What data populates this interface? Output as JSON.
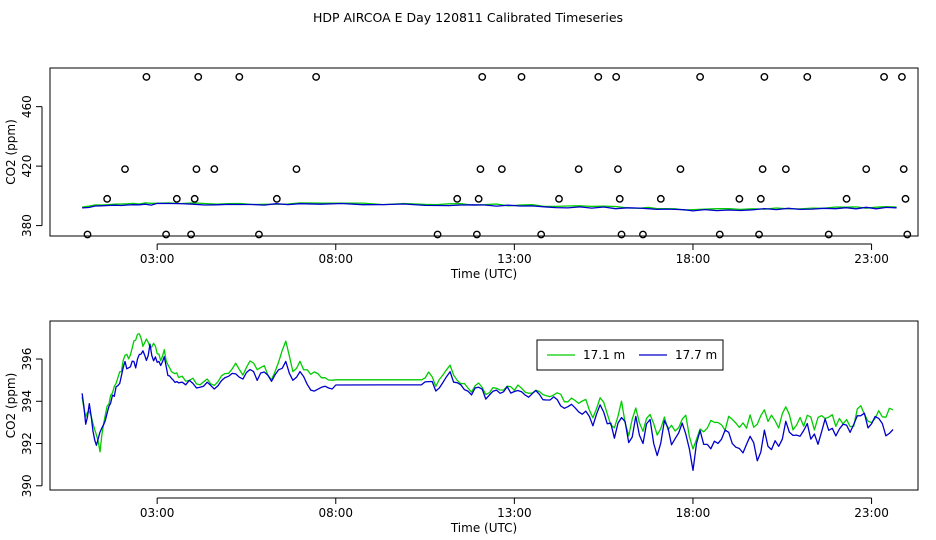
{
  "page_title": "HDP AIRCOA E  Day 120811  Calibrated Timeseries",
  "colors": {
    "green": "#00cc00",
    "blue": "#0000cc",
    "axis": "#000000"
  },
  "chart_data": [
    {
      "type": "scatter+line",
      "id": "top",
      "xlabel": "Time (UTC)",
      "ylabel": "CO2 (ppm)",
      "xlim": [
        0,
        24.3
      ],
      "ylim": [
        373,
        486
      ],
      "x_ticks": [
        3,
        8,
        13,
        18,
        23
      ],
      "x_tick_labels": [
        "03:00",
        "08:00",
        "13:00",
        "18:00",
        "23:00"
      ],
      "y_ticks": [
        380,
        420,
        460
      ],
      "y_tick_labels": [
        "380",
        "420",
        "460"
      ],
      "points": [
        [
          1.05,
          374
        ],
        [
          1.6,
          398
        ],
        [
          2.1,
          418
        ],
        [
          2.7,
          480
        ],
        [
          3.25,
          374
        ],
        [
          3.55,
          398
        ],
        [
          3.95,
          374
        ],
        [
          4.05,
          398
        ],
        [
          4.1,
          418
        ],
        [
          4.15,
          480
        ],
        [
          4.6,
          418
        ],
        [
          5.3,
          480
        ],
        [
          5.85,
          374
        ],
        [
          6.35,
          398
        ],
        [
          6.9,
          418
        ],
        [
          7.45,
          480
        ],
        [
          10.85,
          374
        ],
        [
          11.4,
          398
        ],
        [
          11.95,
          374
        ],
        [
          12.0,
          398
        ],
        [
          12.05,
          418
        ],
        [
          12.1,
          480
        ],
        [
          12.65,
          418
        ],
        [
          13.2,
          480
        ],
        [
          13.75,
          374
        ],
        [
          14.25,
          398
        ],
        [
          14.8,
          418
        ],
        [
          15.35,
          480
        ],
        [
          15.85,
          480
        ],
        [
          15.9,
          418
        ],
        [
          15.95,
          398
        ],
        [
          16.0,
          374
        ],
        [
          16.6,
          374
        ],
        [
          17.1,
          398
        ],
        [
          17.65,
          418
        ],
        [
          18.2,
          480
        ],
        [
          18.75,
          374
        ],
        [
          19.3,
          398
        ],
        [
          19.85,
          374
        ],
        [
          19.9,
          398
        ],
        [
          19.95,
          418
        ],
        [
          20.0,
          480
        ],
        [
          20.6,
          418
        ],
        [
          21.2,
          480
        ],
        [
          21.8,
          374
        ],
        [
          22.3,
          398
        ],
        [
          22.85,
          418
        ],
        [
          23.35,
          480
        ],
        [
          23.85,
          480
        ],
        [
          23.9,
          418
        ],
        [
          23.95,
          398
        ],
        [
          24.0,
          374
        ]
      ],
      "series": [
        {
          "name": "17.1 m",
          "color": "green",
          "values": [
            [
              0.9,
              393
            ],
            [
              2.0,
              394
            ],
            [
              3.0,
              395.5
            ],
            [
              5.0,
              394.5
            ],
            [
              7.0,
              395
            ],
            [
              10.5,
              394.5
            ],
            [
              12.5,
              394
            ],
            [
              14.5,
              393
            ],
            [
              16.5,
              392
            ],
            [
              18.0,
              390.5
            ],
            [
              20.0,
              391.5
            ],
            [
              22.0,
              392
            ],
            [
              23.7,
              392.5
            ]
          ]
        },
        {
          "name": "17.7 m",
          "color": "blue",
          "values": [
            [
              0.9,
              392.5
            ],
            [
              2.0,
              393.5
            ],
            [
              3.0,
              394.5
            ],
            [
              5.0,
              394
            ],
            [
              7.0,
              394.5
            ],
            [
              10.5,
              394
            ],
            [
              12.5,
              393.5
            ],
            [
              14.5,
              392.5
            ],
            [
              16.5,
              391.5
            ],
            [
              18.0,
              390
            ],
            [
              20.0,
              391
            ],
            [
              22.0,
              391.5
            ],
            [
              23.7,
              392
            ]
          ]
        }
      ]
    },
    {
      "type": "line",
      "id": "bottom",
      "xlabel": "Time (UTC)",
      "ylabel": "CO2 (ppm)",
      "xlim": [
        0,
        24.3
      ],
      "ylim": [
        389.8,
        397.8
      ],
      "x_ticks": [
        3,
        8,
        13,
        18,
        23
      ],
      "x_tick_labels": [
        "03:00",
        "08:00",
        "13:00",
        "18:00",
        "23:00"
      ],
      "y_ticks": [
        390,
        392,
        394,
        396
      ],
      "y_tick_labels": [
        "390",
        "392",
        "394",
        "396"
      ],
      "legend": {
        "position": "top-center",
        "entries": [
          "17.1 m",
          "17.7 m"
        ]
      },
      "series": [
        {
          "name": "17.1 m",
          "color": "green",
          "x": [
            0.9,
            1.0,
            1.1,
            1.2,
            1.3,
            1.4,
            1.5,
            1.6,
            1.7,
            1.8,
            1.9,
            2.0,
            2.1,
            2.2,
            2.3,
            2.4,
            2.5,
            2.6,
            2.7,
            2.8,
            2.9,
            3.0,
            3.1,
            3.2,
            3.3,
            3.4,
            3.5,
            3.6,
            3.8,
            4.0,
            4.2,
            4.4,
            4.6,
            4.8,
            5.0,
            5.2,
            5.4,
            5.6,
            5.8,
            6.0,
            6.2,
            6.4,
            6.6,
            6.8,
            7.0,
            7.2,
            7.4,
            7.6,
            7.8,
            8.0,
            10.4,
            10.6,
            10.8,
            11.0,
            11.2,
            11.4,
            11.6,
            11.8,
            12.0,
            12.2,
            12.4,
            12.6,
            12.8,
            13.0,
            13.2,
            13.4,
            13.6,
            13.8,
            14.0,
            14.2,
            14.4,
            14.6,
            14.8,
            15.0,
            15.2,
            15.4,
            15.6,
            15.8,
            16.0,
            16.2,
            16.4,
            16.6,
            16.8,
            17.0,
            17.2,
            17.4,
            17.6,
            17.8,
            18.0,
            18.2,
            18.4,
            18.6,
            18.8,
            19.0,
            19.2,
            19.4,
            19.6,
            19.8,
            20.0,
            20.2,
            20.4,
            20.6,
            20.8,
            21.0,
            21.2,
            21.4,
            21.6,
            21.8,
            22.0,
            22.2,
            22.4,
            22.6,
            22.8,
            23.0,
            23.2,
            23.4,
            23.6
          ],
          "values": [
            394.3,
            393.2,
            393.6,
            392.9,
            392.4,
            391.6,
            393.0,
            393.7,
            394.3,
            394.7,
            395.2,
            395.5,
            396.2,
            396.0,
            396.6,
            396.9,
            397.2,
            396.6,
            396.9,
            396.5,
            396.8,
            396.3,
            396.0,
            396.4,
            395.7,
            395.5,
            395.4,
            395.2,
            395.0,
            395.1,
            394.8,
            395.0,
            394.7,
            395.2,
            395.4,
            395.8,
            395.2,
            396.0,
            395.4,
            395.6,
            395.1,
            395.9,
            396.8,
            395.4,
            395.8,
            395.4,
            395.3,
            395.2,
            395.1,
            395.0,
            395.1,
            395.3,
            394.8,
            395.2,
            395.7,
            395.0,
            394.8,
            394.5,
            394.9,
            394.3,
            394.7,
            394.5,
            394.8,
            394.6,
            394.7,
            394.4,
            394.6,
            394.3,
            394.2,
            394.4,
            394.0,
            394.2,
            393.9,
            394.0,
            393.2,
            394.2,
            393.5,
            392.8,
            393.9,
            392.6,
            393.6,
            392.8,
            393.4,
            392.5,
            393.3,
            392.6,
            393.0,
            393.2,
            391.9,
            392.8,
            392.6,
            392.9,
            392.7,
            393.2,
            393.0,
            392.9,
            393.3,
            392.7,
            393.4,
            393.2,
            393.0,
            393.5,
            392.8,
            393.0,
            393.2,
            392.9,
            393.1,
            393.3,
            393.0,
            393.2,
            392.9,
            393.4,
            393.6,
            393.1,
            393.5,
            393.2,
            393.8
          ],
          "noise": 0.55
        },
        {
          "name": "17.7 m",
          "color": "blue",
          "x": [
            0.9,
            1.0,
            1.1,
            1.2,
            1.3,
            1.4,
            1.5,
            1.6,
            1.7,
            1.8,
            1.9,
            2.0,
            2.1,
            2.2,
            2.3,
            2.4,
            2.5,
            2.6,
            2.7,
            2.8,
            2.9,
            3.0,
            3.1,
            3.2,
            3.3,
            3.4,
            3.5,
            3.6,
            3.8,
            4.0,
            4.2,
            4.4,
            4.6,
            4.8,
            5.0,
            5.2,
            5.4,
            5.6,
            5.8,
            6.0,
            6.2,
            6.4,
            6.6,
            6.8,
            7.0,
            7.2,
            7.4,
            7.6,
            7.8,
            8.0,
            10.4,
            10.6,
            10.8,
            11.0,
            11.2,
            11.4,
            11.6,
            11.8,
            12.0,
            12.2,
            12.4,
            12.6,
            12.8,
            13.0,
            13.2,
            13.4,
            13.6,
            13.8,
            14.0,
            14.2,
            14.4,
            14.6,
            14.8,
            15.0,
            15.2,
            15.4,
            15.6,
            15.8,
            16.0,
            16.2,
            16.4,
            16.6,
            16.8,
            17.0,
            17.2,
            17.4,
            17.6,
            17.8,
            18.0,
            18.2,
            18.4,
            18.6,
            18.8,
            19.0,
            19.2,
            19.4,
            19.6,
            19.8,
            20.0,
            20.2,
            20.4,
            20.6,
            20.8,
            21.0,
            21.2,
            21.4,
            21.6,
            21.8,
            22.0,
            22.2,
            22.4,
            22.6,
            22.8,
            23.0,
            23.2,
            23.4,
            23.6
          ],
          "values": [
            394.5,
            393.0,
            393.8,
            392.6,
            392.0,
            392.6,
            393.0,
            393.5,
            394.0,
            394.3,
            394.8,
            395.2,
            395.8,
            395.5,
            396.0,
            395.6,
            396.1,
            396.3,
            395.9,
            396.6,
            396.0,
            395.9,
            395.6,
            396.1,
            395.3,
            395.1,
            395.0,
            394.9,
            394.8,
            394.9,
            394.6,
            394.8,
            394.6,
            395.0,
            395.1,
            395.4,
            395.0,
            395.5,
            395.1,
            395.3,
            394.9,
            395.4,
            395.9,
            394.9,
            395.3,
            394.8,
            394.5,
            394.6,
            394.6,
            394.7,
            394.9,
            395.0,
            394.6,
            394.9,
            395.3,
            394.8,
            394.6,
            394.4,
            394.7,
            394.2,
            394.5,
            394.4,
            394.6,
            394.4,
            394.5,
            394.2,
            394.4,
            394.1,
            394.0,
            394.1,
            393.6,
            393.8,
            393.5,
            393.6,
            392.8,
            393.8,
            393.0,
            392.2,
            393.4,
            391.8,
            393.1,
            392.2,
            392.8,
            391.5,
            392.9,
            392.0,
            392.5,
            392.7,
            391.0,
            392.3,
            391.8,
            392.2,
            391.9,
            392.6,
            392.0,
            391.5,
            392.2,
            391.2,
            392.6,
            391.6,
            392.0,
            392.8,
            392.3,
            392.6,
            392.8,
            392.2,
            392.6,
            392.9,
            392.4,
            393.0,
            392.7,
            393.0,
            393.3,
            392.8,
            393.2,
            392.6,
            393.0
          ],
          "noise": 0.7
        }
      ]
    }
  ]
}
